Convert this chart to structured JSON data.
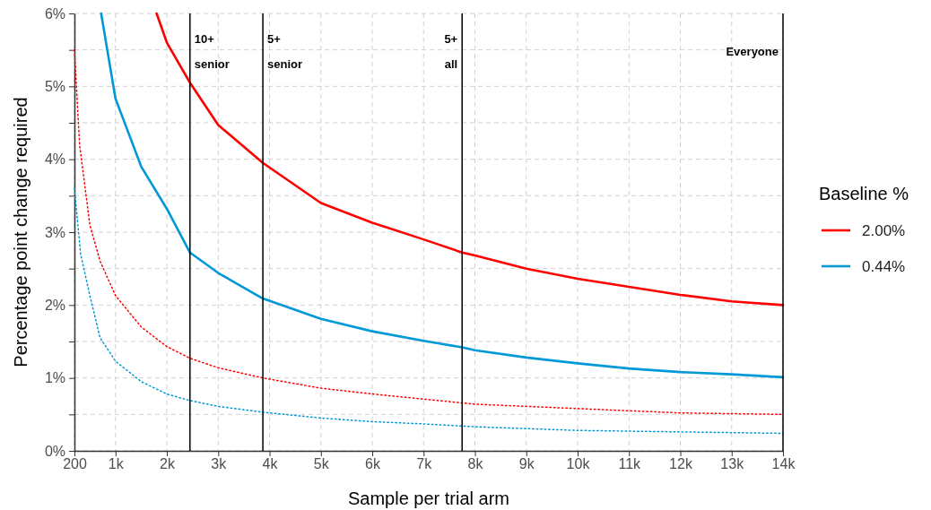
{
  "chart_data": {
    "type": "line",
    "xlabel": "Sample per trial arm",
    "ylabel": "Percentage point change required",
    "legend_title": "Baseline %",
    "series": [
      {
        "name": "2.00%",
        "color": "#ff0000",
        "x": [
          1800,
          2000,
          2450,
          3000,
          3870,
          5000,
          6000,
          7000,
          7750,
          8000,
          9000,
          10000,
          11000,
          12000,
          13000,
          14000
        ],
        "values": [
          6.0,
          5.6,
          5.05,
          4.47,
          3.95,
          3.4,
          3.13,
          2.9,
          2.72,
          2.68,
          2.5,
          2.36,
          2.25,
          2.14,
          2.05,
          2.0
        ]
      },
      {
        "name": "0.44%",
        "color": "#0099d8",
        "x": [
          720,
          1000,
          1500,
          2000,
          2450,
          3000,
          3870,
          5000,
          6000,
          7000,
          7750,
          8000,
          9000,
          10000,
          11000,
          12000,
          13000,
          14000
        ],
        "values": [
          6.0,
          4.83,
          3.9,
          3.32,
          2.72,
          2.44,
          2.09,
          1.81,
          1.64,
          1.51,
          1.42,
          1.38,
          1.28,
          1.2,
          1.13,
          1.08,
          1.05,
          1.01
        ]
      },
      {
        "color": "#ff0000",
        "line_style": "dotted",
        "x": [
          200,
          300,
          500,
          700,
          1000,
          1500,
          2000,
          2450,
          3000,
          3870,
          5000,
          6000,
          7000,
          8000,
          10000,
          12000,
          14000
        ],
        "values": [
          5.5,
          4.2,
          3.1,
          2.6,
          2.13,
          1.7,
          1.43,
          1.27,
          1.14,
          1.0,
          0.86,
          0.78,
          0.71,
          0.64,
          0.58,
          0.52,
          0.5
        ]
      },
      {
        "color": "#0099d8",
        "line_style": "dotted",
        "x": [
          200,
          320,
          500,
          700,
          1000,
          1500,
          2000,
          2450,
          3000,
          3870,
          5000,
          6000,
          7000,
          8000,
          10000,
          12000,
          14000
        ],
        "values": [
          3.6,
          2.7,
          2.13,
          1.55,
          1.23,
          0.95,
          0.78,
          0.69,
          0.61,
          0.53,
          0.45,
          0.4,
          0.37,
          0.33,
          0.28,
          0.26,
          0.24
        ]
      }
    ],
    "xlim": [
      200,
      14000
    ],
    "xticks": [
      200,
      {
        "value": 1000,
        "label": "1k"
      },
      {
        "value": 2000,
        "label": "2k"
      },
      {
        "value": 3000,
        "label": "3k"
      },
      {
        "value": 4000,
        "label": "4k"
      },
      {
        "value": 5000,
        "label": "5k"
      },
      {
        "value": 6000,
        "label": "6k"
      },
      {
        "value": 7000,
        "label": "7k"
      },
      {
        "value": 8000,
        "label": "8k"
      },
      {
        "value": 9000,
        "label": "9k"
      },
      {
        "value": 10000,
        "label": "10k"
      },
      {
        "value": 11000,
        "label": "11k"
      },
      {
        "value": 12000,
        "label": "12k"
      },
      {
        "value": 13000,
        "label": "13k"
      },
      {
        "value": 14000,
        "label": "14k"
      }
    ],
    "ylim": [
      0,
      6
    ],
    "yticks": [
      {
        "value": 0,
        "label": "0%"
      },
      {
        "value": 0.5,
        "label": null
      },
      {
        "value": 1,
        "label": "1%"
      },
      {
        "value": 1.5,
        "label": null
      },
      {
        "value": 2,
        "label": "2%"
      },
      {
        "value": 2.5,
        "label": null
      },
      {
        "value": 3,
        "label": "3%"
      },
      {
        "value": 3.5,
        "label": null
      },
      {
        "value": 4,
        "label": "4%"
      },
      {
        "value": 4.5,
        "label": null
      },
      {
        "value": 5,
        "label": "5%"
      },
      {
        "value": 5.5,
        "label": null
      },
      {
        "value": 6,
        "label": "6%"
      }
    ],
    "ref_lines": [
      {
        "axis": "x",
        "value": 2450,
        "label": "10+\nsenior",
        "color": "#000000"
      },
      {
        "axis": "x",
        "value": 3870,
        "label": "5+\nsenior",
        "color": "#000000"
      },
      {
        "axis": "x",
        "value": 7750,
        "label": "5+\nall",
        "color": "#000000"
      },
      {
        "axis": "x",
        "value": 14000,
        "label": "Everyone",
        "color": "#000000"
      }
    ],
    "grid": true,
    "legend": "right",
    "line_style": "solid",
    "marker": "none"
  }
}
